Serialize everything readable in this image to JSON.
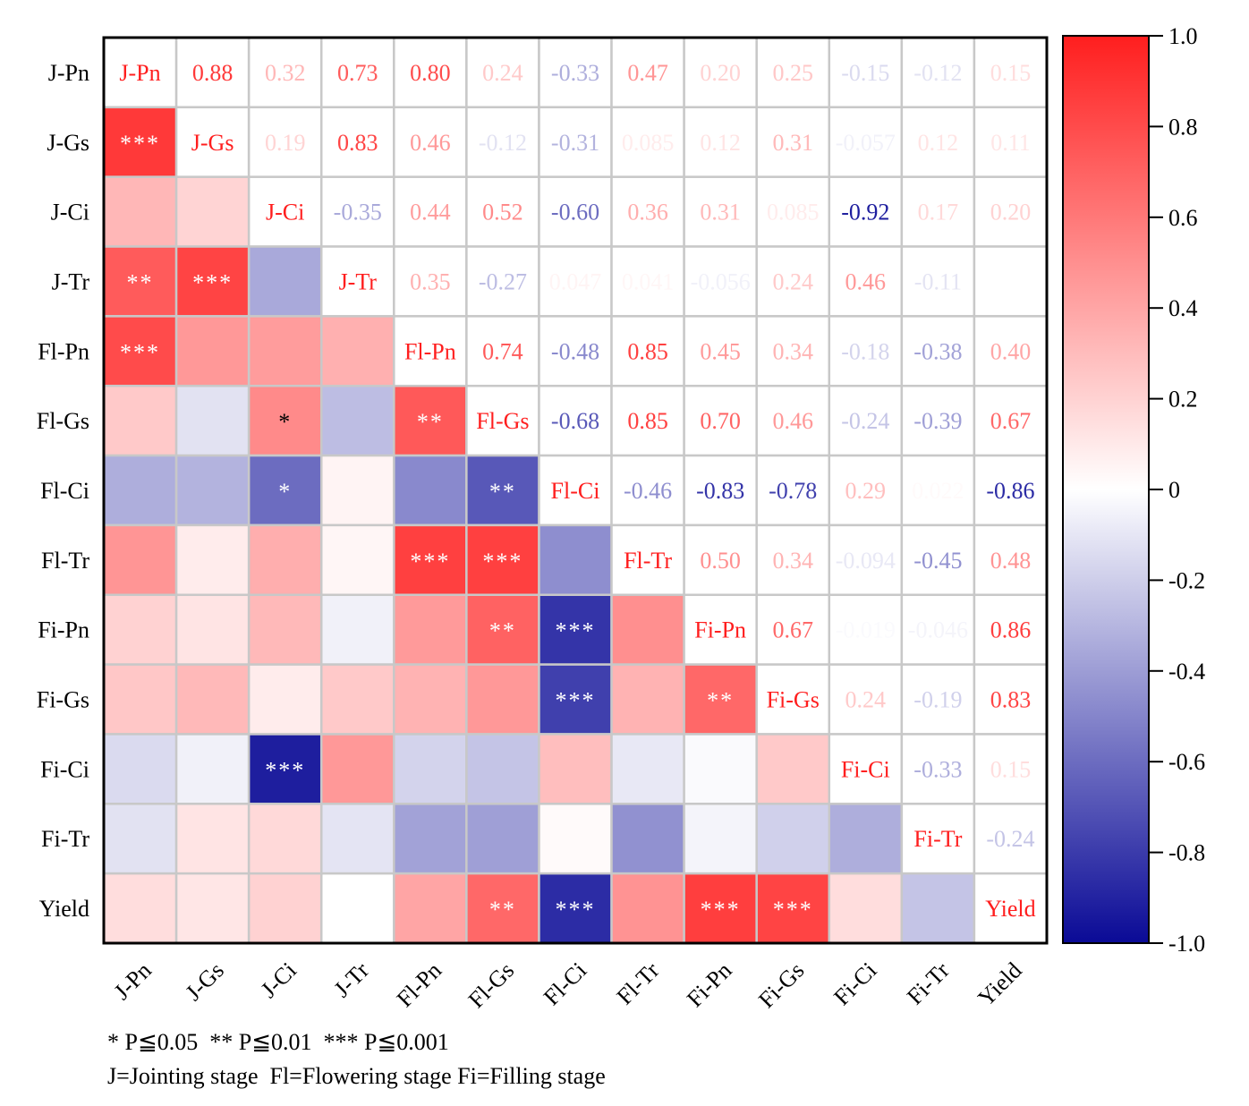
{
  "chart_data": {
    "type": "heatmap",
    "labels": [
      "J-Pn",
      "J-Gs",
      "J-Ci",
      "J-Tr",
      "Fl-Pn",
      "Fl-Gs",
      "Fl-Ci",
      "Fl-Tr",
      "Fi-Pn",
      "Fi-Gs",
      "Fi-Ci",
      "Fi-Tr",
      "Yield"
    ],
    "upper_values": [
      [
        null,
        0.88,
        0.32,
        0.73,
        0.8,
        0.24,
        -0.33,
        0.47,
        0.2,
        0.25,
        -0.15,
        -0.12,
        0.15
      ],
      [
        null,
        null,
        0.19,
        0.83,
        0.46,
        -0.12,
        -0.31,
        0.085,
        0.12,
        0.31,
        -0.057,
        0.12,
        0.11
      ],
      [
        null,
        null,
        null,
        -0.35,
        0.44,
        0.52,
        -0.6,
        0.36,
        0.31,
        0.085,
        -0.92,
        0.17,
        0.2
      ],
      [
        null,
        null,
        null,
        null,
        0.35,
        -0.27,
        0.047,
        0.041,
        -0.056,
        0.24,
        0.46,
        -0.11,
        null
      ],
      [
        null,
        null,
        null,
        null,
        null,
        0.74,
        -0.48,
        0.85,
        0.45,
        0.34,
        -0.18,
        -0.38,
        0.4
      ],
      [
        null,
        null,
        null,
        null,
        null,
        null,
        -0.68,
        0.85,
        0.7,
        0.46,
        -0.24,
        -0.39,
        0.67
      ],
      [
        null,
        null,
        null,
        null,
        null,
        null,
        null,
        -0.46,
        -0.83,
        -0.78,
        0.29,
        0.022,
        -0.86
      ],
      [
        null,
        null,
        null,
        null,
        null,
        null,
        null,
        null,
        0.5,
        0.34,
        -0.094,
        -0.45,
        0.48
      ],
      [
        null,
        null,
        null,
        null,
        null,
        null,
        null,
        null,
        null,
        0.67,
        -0.019,
        -0.046,
        0.86
      ],
      [
        null,
        null,
        null,
        null,
        null,
        null,
        null,
        null,
        null,
        null,
        0.24,
        -0.19,
        0.83
      ],
      [
        null,
        null,
        null,
        null,
        null,
        null,
        null,
        null,
        null,
        null,
        null,
        -0.33,
        0.15
      ],
      [
        null,
        null,
        null,
        null,
        null,
        null,
        null,
        null,
        null,
        null,
        null,
        null,
        -0.24
      ],
      [
        null,
        null,
        null,
        null,
        null,
        null,
        null,
        null,
        null,
        null,
        null,
        null,
        null
      ]
    ],
    "significance": [
      [
        null,
        "",
        "",
        "",
        "",
        "",
        "",
        "",
        "",
        "",
        "",
        "",
        ""
      ],
      [
        "***",
        null,
        "",
        "",
        "",
        "",
        "",
        "",
        "",
        "",
        "",
        "",
        ""
      ],
      [
        "",
        "",
        null,
        "",
        "",
        "",
        "",
        "",
        "",
        "",
        "",
        "",
        ""
      ],
      [
        "**",
        "***",
        "",
        null,
        "",
        "",
        "",
        "",
        "",
        "",
        "",
        "",
        ""
      ],
      [
        "***",
        "",
        "",
        "",
        null,
        "",
        "",
        "",
        "",
        "",
        "",
        "",
        ""
      ],
      [
        "",
        "",
        "*",
        "",
        "**",
        null,
        "",
        "",
        "",
        "",
        "",
        "",
        ""
      ],
      [
        "",
        "",
        "*",
        "",
        "",
        "**",
        null,
        "",
        "",
        "",
        "",
        "",
        ""
      ],
      [
        "",
        "",
        "",
        "",
        "***",
        "***",
        "",
        null,
        "",
        "",
        "",
        "",
        ""
      ],
      [
        "",
        "",
        "",
        "",
        "",
        "**",
        "***",
        "",
        null,
        "",
        "",
        "",
        ""
      ],
      [
        "",
        "",
        "",
        "",
        "",
        "",
        "***",
        "",
        "**",
        null,
        "",
        "",
        ""
      ],
      [
        "",
        "",
        "***",
        "",
        "",
        "",
        "",
        "",
        "",
        "",
        null,
        "",
        ""
      ],
      [
        "",
        "",
        "",
        "",
        "",
        "",
        "",
        "",
        "",
        "",
        "",
        null,
        ""
      ],
      [
        "",
        "",
        "",
        "",
        "",
        "**",
        "***",
        "",
        "***",
        "***",
        "",
        "",
        null
      ]
    ],
    "colorbar": {
      "min": -1.0,
      "max": 1.0,
      "ticks": [
        "1.0",
        "0.8",
        "0.6",
        "0.4",
        "0.2",
        "0",
        "-0.2",
        "-0.4",
        "-0.6",
        "-0.8",
        "-1.0"
      ],
      "low_color": "#0a0a96",
      "mid_color": "#ffffff",
      "high_color": "#ff1e1e"
    },
    "diagonal_text_color": "#ff1e1e"
  },
  "footnote": {
    "line1": "* P≦0.05  ** P≦0.01  *** P≦0.001",
    "line2": "J=Jointing stage  Fl=Flowering stage Fi=Filling stage"
  }
}
